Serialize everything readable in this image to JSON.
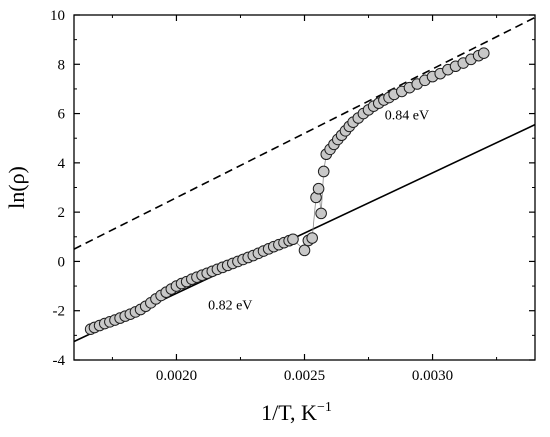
{
  "chart_data": {
    "type": "scatter",
    "xlabel": "1/T, K",
    "xlabel_sup": "−1",
    "ylabel": "ln(ρ)",
    "xlim": [
      0.0016,
      0.0034
    ],
    "ylim": [
      -4,
      10
    ],
    "x_ticks": [
      0.002,
      0.0025,
      0.003
    ],
    "x_tick_labels": [
      "0.0020",
      "0.0025",
      "0.0030"
    ],
    "y_ticks": [
      -4,
      -2,
      0,
      2,
      4,
      6,
      8,
      10
    ],
    "y_tick_labels": [
      "-4",
      "-2",
      "0",
      "2",
      "4",
      "6",
      "8",
      "10"
    ],
    "grid": false,
    "annotations": [
      {
        "text": "0.82 eV",
        "x": 0.00221,
        "y": -1.95
      },
      {
        "text": "0.84 eV",
        "x": 0.0029,
        "y": 5.75
      }
    ],
    "series": [
      {
        "style": "scatter",
        "marker": "circle",
        "marker_fill": "#c8c8c8",
        "marker_edge": "#202020",
        "connected_by_thin_line": true,
        "x": [
          0.001665,
          0.00168,
          0.0017,
          0.00172,
          0.00174,
          0.00176,
          0.00178,
          0.0018,
          0.00182,
          0.00184,
          0.00186,
          0.00188,
          0.0019,
          0.00192,
          0.00194,
          0.00196,
          0.00198,
          0.002,
          0.00202,
          0.00204,
          0.00206,
          0.00208,
          0.0021,
          0.00212,
          0.00214,
          0.00216,
          0.00218,
          0.0022,
          0.00222,
          0.00224,
          0.00226,
          0.00228,
          0.0023,
          0.00232,
          0.00234,
          0.00236,
          0.00238,
          0.0024,
          0.00242,
          0.00244,
          0.002455,
          0.0025,
          0.002515,
          0.00253,
          0.002545,
          0.002555,
          0.002565,
          0.002575,
          0.002585,
          0.0026,
          0.002615,
          0.00263,
          0.002645,
          0.00266,
          0.002675,
          0.00269,
          0.00271,
          0.00273,
          0.00275,
          0.00277,
          0.00279,
          0.00281,
          0.00283,
          0.00285,
          0.00288,
          0.00291,
          0.00294,
          0.00297,
          0.003,
          0.00303,
          0.00306,
          0.00309,
          0.00312,
          0.00315,
          0.00318,
          0.0032
        ],
        "y": [
          -2.75,
          -2.68,
          -2.6,
          -2.52,
          -2.45,
          -2.38,
          -2.3,
          -2.22,
          -2.14,
          -2.05,
          -1.95,
          -1.82,
          -1.68,
          -1.52,
          -1.38,
          -1.25,
          -1.12,
          -1.0,
          -0.9,
          -0.82,
          -0.72,
          -0.64,
          -0.56,
          -0.48,
          -0.4,
          -0.32,
          -0.24,
          -0.16,
          -0.08,
          0.0,
          0.08,
          0.16,
          0.24,
          0.33,
          0.42,
          0.51,
          0.6,
          0.68,
          0.76,
          0.84,
          0.9,
          0.45,
          0.85,
          0.95,
          2.6,
          2.95,
          1.95,
          3.65,
          4.35,
          4.55,
          4.75,
          4.95,
          5.12,
          5.3,
          5.48,
          5.65,
          5.82,
          6.0,
          6.15,
          6.3,
          6.42,
          6.55,
          6.65,
          6.78,
          6.9,
          7.05,
          7.2,
          7.35,
          7.5,
          7.62,
          7.78,
          7.92,
          8.05,
          8.2,
          8.35,
          8.45
        ]
      },
      {
        "style": "line",
        "line_dash": "solid",
        "x": [
          0.0016,
          0.0034
        ],
        "y": [
          -3.25,
          5.55
        ]
      },
      {
        "style": "line",
        "line_dash": "dashed",
        "x": [
          0.0016,
          0.0034
        ],
        "y": [
          0.5,
          9.9
        ]
      }
    ]
  }
}
